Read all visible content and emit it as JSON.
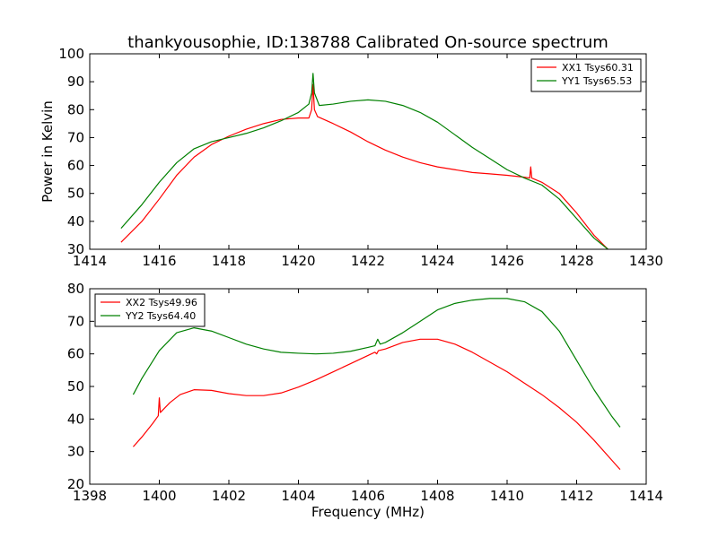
{
  "title": "thankyousophie, ID:138788 Calibrated On-source spectrum",
  "chart_data": [
    {
      "type": "line",
      "xlabel": "",
      "ylabel": "Power in Kelvin",
      "xlim": [
        1414,
        1430
      ],
      "ylim": [
        30,
        100
      ],
      "xticks": [
        1414,
        1416,
        1418,
        1420,
        1422,
        1424,
        1426,
        1428,
        1430
      ],
      "yticks": [
        30,
        40,
        50,
        60,
        70,
        80,
        90,
        100
      ],
      "legend_position": "top-right",
      "series": [
        {
          "name": "XX1 Tsys60.31",
          "color": "#ff0000",
          "x": [
            1414.9,
            1415.5,
            1416.0,
            1416.5,
            1417.0,
            1417.5,
            1418.0,
            1418.5,
            1419.0,
            1419.5,
            1420.0,
            1420.3,
            1420.38,
            1420.42,
            1420.46,
            1420.55,
            1421.0,
            1421.5,
            1422.0,
            1422.5,
            1423.0,
            1423.5,
            1424.0,
            1424.5,
            1425.0,
            1425.5,
            1426.0,
            1426.5,
            1426.65,
            1426.68,
            1426.71,
            1427.0,
            1427.5,
            1428.0,
            1428.5,
            1428.9
          ],
          "y": [
            32.5,
            40.0,
            48.0,
            56.5,
            63.0,
            67.5,
            70.5,
            73.0,
            75.0,
            76.5,
            77.0,
            77.0,
            80.0,
            89.0,
            80.0,
            77.5,
            75.0,
            72.0,
            68.5,
            65.5,
            63.0,
            61.0,
            59.5,
            58.5,
            57.5,
            57.0,
            56.5,
            55.8,
            55.5,
            59.5,
            55.5,
            54.0,
            50.0,
            43.0,
            35.0,
            30.0
          ]
        },
        {
          "name": "YY1 Tsys65.53",
          "color": "#008000",
          "x": [
            1414.9,
            1415.5,
            1416.0,
            1416.5,
            1417.0,
            1417.5,
            1418.0,
            1418.5,
            1419.0,
            1419.5,
            1420.0,
            1420.3,
            1420.38,
            1420.42,
            1420.46,
            1420.6,
            1421.0,
            1421.5,
            1422.0,
            1422.5,
            1423.0,
            1423.5,
            1424.0,
            1424.5,
            1425.0,
            1425.5,
            1426.0,
            1426.5,
            1427.0,
            1427.5,
            1428.0,
            1428.5,
            1428.9
          ],
          "y": [
            37.5,
            46.0,
            54.0,
            61.0,
            66.0,
            68.5,
            70.0,
            71.5,
            73.5,
            76.0,
            79.0,
            82.0,
            86.0,
            93.0,
            86.0,
            81.5,
            82.0,
            83.0,
            83.5,
            83.0,
            81.5,
            79.0,
            75.5,
            71.0,
            66.5,
            62.5,
            58.5,
            55.5,
            53.0,
            48.0,
            41.0,
            34.0,
            30.0
          ]
        }
      ]
    },
    {
      "type": "line",
      "xlabel": "Frequency (MHz)",
      "ylabel": "",
      "xlim": [
        1398,
        1414
      ],
      "ylim": [
        20,
        80
      ],
      "xticks": [
        1398,
        1400,
        1402,
        1404,
        1406,
        1408,
        1410,
        1412,
        1414
      ],
      "yticks": [
        20,
        30,
        40,
        50,
        60,
        70,
        80
      ],
      "legend_position": "top-left",
      "series": [
        {
          "name": "XX2 Tsys49.96",
          "color": "#ff0000",
          "x": [
            1399.25,
            1399.5,
            1399.8,
            1399.97,
            1400.0,
            1400.03,
            1400.3,
            1400.6,
            1401.0,
            1401.5,
            1402.0,
            1402.5,
            1403.0,
            1403.5,
            1404.0,
            1404.5,
            1405.0,
            1405.5,
            1406.0,
            1406.2,
            1406.25,
            1406.3,
            1406.5,
            1407.0,
            1407.5,
            1408.0,
            1408.5,
            1409.0,
            1409.5,
            1410.0,
            1410.5,
            1411.0,
            1411.5,
            1412.0,
            1412.5,
            1413.0,
            1413.25
          ],
          "y": [
            31.5,
            34.5,
            38.5,
            41.0,
            46.5,
            42.0,
            45.0,
            47.5,
            49.0,
            48.8,
            47.8,
            47.2,
            47.2,
            48.0,
            49.8,
            52.0,
            54.5,
            57.0,
            59.5,
            60.5,
            60.0,
            61.0,
            61.5,
            63.5,
            64.5,
            64.5,
            63.0,
            60.5,
            57.5,
            54.5,
            51.0,
            47.5,
            43.5,
            39.0,
            33.5,
            27.5,
            24.5
          ]
        },
        {
          "name": "YY2 Tsys64.40",
          "color": "#008000",
          "x": [
            1399.25,
            1399.5,
            1400.0,
            1400.5,
            1401.0,
            1401.5,
            1402.0,
            1402.5,
            1403.0,
            1403.5,
            1404.0,
            1404.5,
            1405.0,
            1405.5,
            1406.0,
            1406.2,
            1406.28,
            1406.35,
            1406.5,
            1407.0,
            1407.5,
            1408.0,
            1408.5,
            1409.0,
            1409.5,
            1410.0,
            1410.5,
            1411.0,
            1411.5,
            1412.0,
            1412.5,
            1413.0,
            1413.25
          ],
          "y": [
            47.5,
            52.5,
            61.0,
            66.5,
            68.0,
            67.0,
            65.0,
            63.0,
            61.5,
            60.5,
            60.2,
            60.0,
            60.2,
            60.8,
            62.0,
            62.5,
            64.5,
            63.0,
            63.5,
            66.5,
            70.0,
            73.5,
            75.5,
            76.5,
            77.0,
            77.0,
            76.0,
            73.0,
            67.0,
            58.0,
            49.0,
            41.0,
            37.5
          ]
        }
      ]
    }
  ]
}
